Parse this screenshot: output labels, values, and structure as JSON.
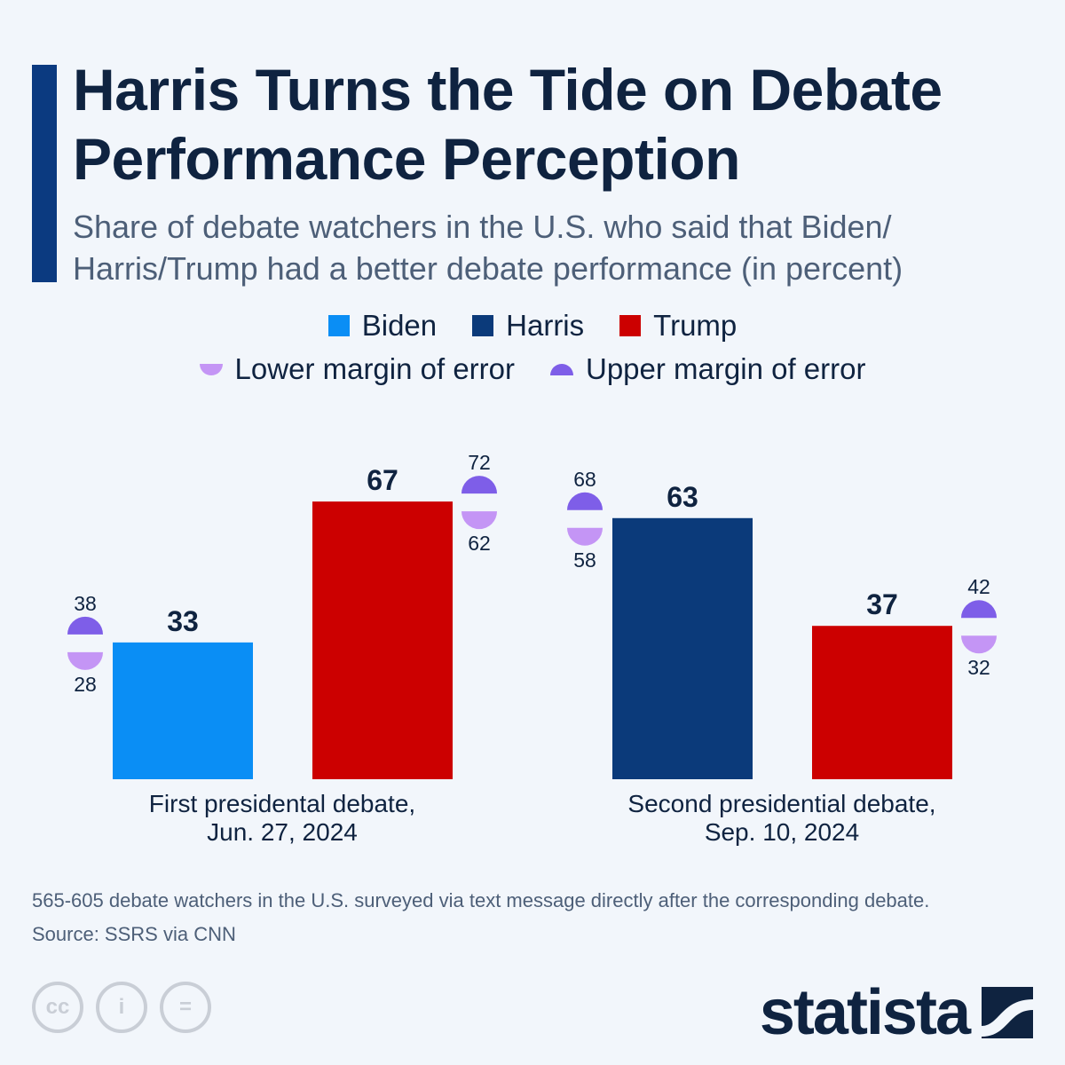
{
  "title": "Harris Turns the Tide on Debate Performance Perception",
  "subtitle": "Share of debate watchers in the U.S. who said that Biden/ Harris/Trump had a better debate performance (in percent)",
  "legend": [
    {
      "label": "Biden",
      "color": "#0a8ef5"
    },
    {
      "label": "Harris",
      "color": "#0b3a7a"
    },
    {
      "label": "Trump",
      "color": "#cc0000"
    },
    {
      "label": "Lower margin of error",
      "color": "#c495f5"
    },
    {
      "label": "Upper margin of error",
      "color": "#7e5ee8"
    }
  ],
  "chart_data": {
    "type": "bar",
    "categories": [
      "First presidental debate, Jun. 27, 2024",
      "Second presidential debate, Sep. 10, 2024"
    ],
    "category_lines": [
      [
        "First presidental debate,",
        "Jun. 27, 2024"
      ],
      [
        "Second presidential debate,",
        "Sep. 10, 2024"
      ]
    ],
    "ylim": [
      0,
      70
    ],
    "grid": false,
    "legend_placement": "top",
    "groups": [
      {
        "bars": [
          {
            "series": "Biden",
            "value": 33,
            "lower": 28,
            "upper": 38,
            "error_side": "left"
          },
          {
            "series": "Trump",
            "value": 67,
            "lower": 62,
            "upper": 72,
            "error_side": "right"
          }
        ]
      },
      {
        "bars": [
          {
            "series": "Harris",
            "value": 63,
            "lower": 58,
            "upper": 68,
            "error_side": "left"
          },
          {
            "series": "Trump",
            "value": 37,
            "lower": 32,
            "upper": 42,
            "error_side": "right"
          }
        ]
      }
    ]
  },
  "footnote": "565-605 debate watchers in the U.S. surveyed via text message directly after the corresponding debate.",
  "source": "Source: SSRS via CNN",
  "license_icons": [
    "cc-icon",
    "attribution-icon",
    "no-derivatives-icon"
  ],
  "brand": "statista"
}
